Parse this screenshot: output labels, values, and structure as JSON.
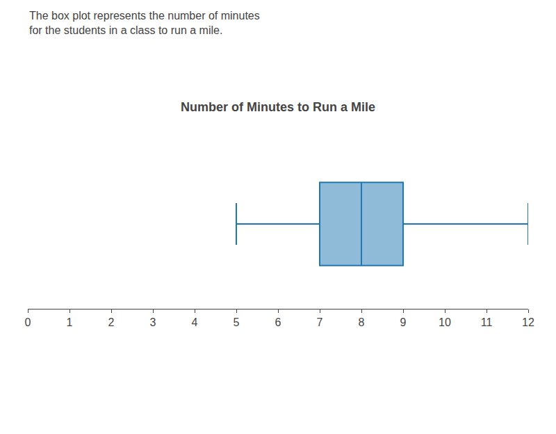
{
  "chart_data": {
    "type": "box",
    "title": "Number of Minutes to Run a Mile",
    "subtitle": [
      "The box plot represents the number of minutes",
      "for the students in a class to run a mile."
    ],
    "whisker_low": 5,
    "q1": 7,
    "median": 8,
    "q3": 9,
    "whisker_high": 12,
    "orientation": "horizontal",
    "xlim": [
      0,
      12
    ],
    "xticks": [
      0,
      1,
      2,
      3,
      4,
      5,
      6,
      7,
      8,
      9,
      10,
      11,
      12
    ],
    "tick_labels": "x",
    "grid": false
  }
}
